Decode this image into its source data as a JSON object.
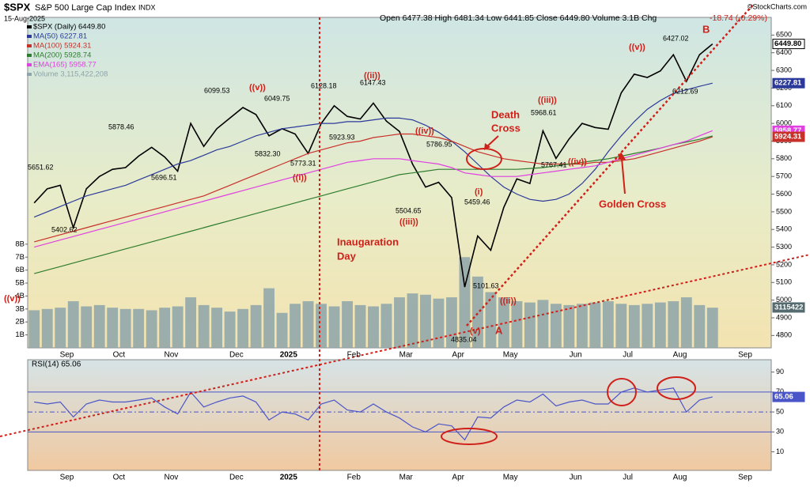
{
  "header": {
    "symbol": "$SPX",
    "name": "S&P 500 Large Cap Index",
    "exchange": "INDX",
    "date": "15-Aug-2025",
    "quote": "Open 6477.38 High 6481.34 Low 6441.85 Close 6449.80 Volume 3.1B Chg",
    "change": "-18.74 (-0.29%)",
    "credit": "©StockCharts.com"
  },
  "chart_data": [
    {
      "type": "line",
      "categories": [
        null,
        null,
        null,
        "Sep",
        null,
        null,
        null,
        "Oct",
        null,
        null,
        null,
        "Nov",
        null,
        null,
        null,
        null,
        "Dec",
        null,
        null,
        null,
        "2025",
        null,
        null,
        null,
        null,
        "Feb",
        null,
        null,
        null,
        "Mar",
        null,
        null,
        null,
        "Apr",
        null,
        null,
        null,
        "May",
        null,
        null,
        null,
        null,
        "Jun",
        null,
        null,
        null,
        "Jul",
        null,
        null,
        null,
        "Aug",
        null,
        null,
        null,
        null,
        "Sep",
        null
      ],
      "series": [
        {
          "name": "$SPX (Daily) 6449.80",
          "color": "#000000",
          "values": [
            5550,
            5630,
            5650,
            5410,
            5630,
            5700,
            5740,
            5750,
            5815,
            5865,
            5810,
            5730,
            6000,
            5870,
            5970,
            6030,
            6090,
            6050,
            5930,
            5970,
            5940,
            5830,
            6000,
            6100,
            6040,
            6025,
            6115,
            6013,
            5955,
            5770,
            5640,
            5667,
            5580,
            5074,
            5363,
            5282,
            5525,
            5686,
            5660,
            5958,
            5802,
            5912,
            6000,
            5977,
            5967,
            6173,
            6279,
            6260,
            6297,
            6389,
            6238,
            6389,
            6449.8,
            null,
            null,
            null,
            null
          ]
        },
        {
          "name": "MA(50) 6227.81",
          "color": "#2b3a9a",
          "values": [
            5470,
            5500,
            5530,
            5560,
            5590,
            5610,
            5630,
            5650,
            5680,
            5710,
            5740,
            5770,
            5790,
            5820,
            5850,
            5870,
            5900,
            5930,
            5950,
            5970,
            5980,
            5990,
            6000,
            6000,
            6010,
            6010,
            6020,
            6030,
            6030,
            6020,
            5990,
            5950,
            5900,
            5840,
            5770,
            5700,
            5640,
            5600,
            5570,
            5560,
            5570,
            5600,
            5660,
            5740,
            5840,
            5930,
            6010,
            6080,
            6130,
            6170,
            6190,
            6210,
            6228,
            null,
            null,
            null,
            null
          ]
        },
        {
          "name": "MA(100) 5924.31",
          "color": "#c8302a",
          "values": [
            5330,
            5350,
            5370,
            5390,
            5410,
            5430,
            5450,
            5470,
            5490,
            5510,
            5530,
            5550,
            5570,
            5590,
            5620,
            5650,
            5680,
            5710,
            5740,
            5770,
            5800,
            5830,
            5850,
            5870,
            5890,
            5900,
            5920,
            5930,
            5940,
            5940,
            5930,
            5920,
            5900,
            5870,
            5840,
            5820,
            5800,
            5790,
            5780,
            5770,
            5770,
            5770,
            5770,
            5780,
            5780,
            5790,
            5800,
            5820,
            5840,
            5860,
            5880,
            5900,
            5924,
            null,
            null,
            null,
            null
          ]
        },
        {
          "name": "MA(200) 5928.74",
          "color": "#2e7d2e",
          "values": [
            5150,
            5170,
            5190,
            5210,
            5230,
            5250,
            5270,
            5290,
            5310,
            5330,
            5350,
            5370,
            5390,
            5410,
            5430,
            5450,
            5470,
            5490,
            5510,
            5530,
            5550,
            5570,
            5590,
            5610,
            5630,
            5650,
            5670,
            5690,
            5710,
            5720,
            5730,
            5740,
            5740,
            5740,
            5740,
            5740,
            5740,
            5740,
            5745,
            5750,
            5760,
            5770,
            5780,
            5790,
            5800,
            5815,
            5830,
            5845,
            5860,
            5880,
            5895,
            5910,
            5929,
            null,
            null,
            null,
            null
          ]
        },
        {
          "name": "EMA(165) 5958.77",
          "color": "#e040e0",
          "values": [
            5300,
            5320,
            5340,
            5360,
            5380,
            5400,
            5420,
            5440,
            5460,
            5480,
            5500,
            5520,
            5540,
            5560,
            5580,
            5600,
            5620,
            5640,
            5660,
            5680,
            5700,
            5720,
            5740,
            5760,
            5780,
            5790,
            5800,
            5800,
            5800,
            5790,
            5780,
            5770,
            5750,
            5720,
            5710,
            5700,
            5700,
            5700,
            5710,
            5720,
            5730,
            5740,
            5750,
            5760,
            5780,
            5800,
            5820,
            5840,
            5860,
            5880,
            5900,
            5930,
            5959,
            null,
            null,
            null,
            null
          ]
        },
        {
          "name": "Volume 3,115,422,208",
          "color": "#8da4a9",
          "axis": "y2",
          "values": [
            2.9,
            3.0,
            3.1,
            3.6,
            3.2,
            3.3,
            3.1,
            3.0,
            3.0,
            2.9,
            3.1,
            3.2,
            3.9,
            3.3,
            3.1,
            2.8,
            3.0,
            3.3,
            4.6,
            2.7,
            3.4,
            3.6,
            3.4,
            3.2,
            3.6,
            3.3,
            3.2,
            3.4,
            3.9,
            4.2,
            4.1,
            3.8,
            3.9,
            7.0,
            5.5,
            4.3,
            3.9,
            3.6,
            3.5,
            3.7,
            3.4,
            3.3,
            3.4,
            3.5,
            3.6,
            3.4,
            3.3,
            3.4,
            3.5,
            3.6,
            3.9,
            3.3,
            3.1,
            null,
            null,
            null,
            null
          ]
        }
      ],
      "ylim": [
        4730,
        6600
      ],
      "yticks": [
        4800,
        4900,
        5000,
        5100,
        5200,
        5300,
        5400,
        5500,
        5600,
        5700,
        5800,
        5900,
        6000,
        6100,
        6200,
        6300,
        6400,
        6500
      ],
      "y2lim": [
        0,
        25.5
      ],
      "y2ticks": [
        {
          "value": 1,
          "label": "1B"
        },
        {
          "value": 2,
          "label": "2B"
        },
        {
          "value": 3,
          "label": "3B"
        },
        {
          "value": 4,
          "label": "4B"
        },
        {
          "value": 5,
          "label": "5B"
        },
        {
          "value": 6,
          "label": "6B"
        },
        {
          "value": 7,
          "label": "7B"
        },
        {
          "value": 8,
          "label": "8B"
        }
      ],
      "right_tags": [
        {
          "label": "6449.80",
          "value": 6449.8,
          "color": "#000000",
          "axis": "y"
        },
        {
          "label": "6227.81",
          "value": 6227.81,
          "color": "#2b3a9a",
          "axis": "y"
        },
        {
          "label": "5958.77",
          "value": 5958.77,
          "color": "#e040e0",
          "axis": "y"
        },
        {
          "label": "5924.31",
          "value": 5924.31,
          "color": "#c8302a",
          "axis": "y"
        },
        {
          "label": "3115422",
          "value": 3.115422,
          "color": "#556b70",
          "axis": "y2"
        }
      ],
      "annotations": [
        {
          "text": "5651.62",
          "color": "#000"
        },
        {
          "text": "5402.62",
          "color": "#000"
        },
        {
          "text": "5878.46",
          "color": "#000"
        },
        {
          "text": "5696.51",
          "color": "#000"
        },
        {
          "text": "6099.53",
          "color": "#000"
        },
        {
          "text": "((v))",
          "color": "#d0201a"
        },
        {
          "text": "6049.75",
          "color": "#000"
        },
        {
          "text": "5832.30",
          "color": "#000"
        },
        {
          "text": "5773.31",
          "color": "#000"
        },
        {
          "text": "((i))",
          "color": "#d0201a"
        },
        {
          "text": "6128.18",
          "color": "#000"
        },
        {
          "text": "5923.93",
          "color": "#000"
        },
        {
          "text": "((ii))",
          "color": "#d0201a"
        },
        {
          "text": "6147.43",
          "color": "#000"
        },
        {
          "text": "5786.95",
          "color": "#000"
        },
        {
          "text": "((iv))",
          "color": "#d0201a"
        },
        {
          "text": "5504.65",
          "color": "#000"
        },
        {
          "text": "((iii))",
          "color": "#d0201a"
        },
        {
          "text": "(i)",
          "color": "#d0201a"
        },
        {
          "text": "5459.46",
          "color": "#000"
        },
        {
          "text": "5101.63",
          "color": "#000"
        },
        {
          "text": "((ii))",
          "color": "#d0201a"
        },
        {
          "text": "4835.04",
          "color": "#000"
        },
        {
          "text": "(v)",
          "color": "#d0201a"
        },
        {
          "text": "A",
          "color": "#d0201a"
        },
        {
          "text": "Death",
          "color": "#d0201a"
        },
        {
          "text": "Cross",
          "color": "#d0201a"
        },
        {
          "text": "((iii))",
          "color": "#d0201a"
        },
        {
          "text": "5968.61",
          "color": "#000"
        },
        {
          "text": "5767.41",
          "color": "#000"
        },
        {
          "text": "((iv))",
          "color": "#d0201a"
        },
        {
          "text": "((v))",
          "color": "#d0201a"
        },
        {
          "text": "6427.02",
          "color": "#000"
        },
        {
          "text": "B",
          "color": "#d0201a"
        },
        {
          "text": "6212.69",
          "color": "#000"
        },
        {
          "text": "Golden Cross",
          "color": "#d0201a"
        },
        {
          "text": "Inaugaration",
          "color": "#d0201a"
        },
        {
          "text": "Day",
          "color": "#d0201a"
        },
        {
          "text": "((v))",
          "color": "#d0201a"
        }
      ]
    },
    {
      "type": "line",
      "series": [
        {
          "name": "RSI(14) 65.06",
          "color": "#4a55c8",
          "values": [
            60,
            58,
            60,
            45,
            58,
            62,
            60,
            60,
            62,
            64,
            55,
            48,
            70,
            55,
            60,
            64,
            66,
            60,
            42,
            50,
            48,
            42,
            58,
            62,
            52,
            50,
            58,
            50,
            44,
            35,
            30,
            38,
            36,
            22,
            45,
            44,
            55,
            62,
            60,
            68,
            56,
            60,
            62,
            58,
            58,
            70,
            74,
            70,
            72,
            74,
            50,
            62,
            65.06,
            null,
            null,
            null,
            null
          ]
        }
      ],
      "ylim": [
        -8.6,
        102.4
      ],
      "yticks": [
        10,
        30,
        50,
        70,
        90
      ],
      "levels": [
        70,
        50,
        30
      ],
      "right_tags": [
        {
          "label": "65.06",
          "value": 65.06,
          "color": "#4a55c8"
        }
      ]
    }
  ]
}
